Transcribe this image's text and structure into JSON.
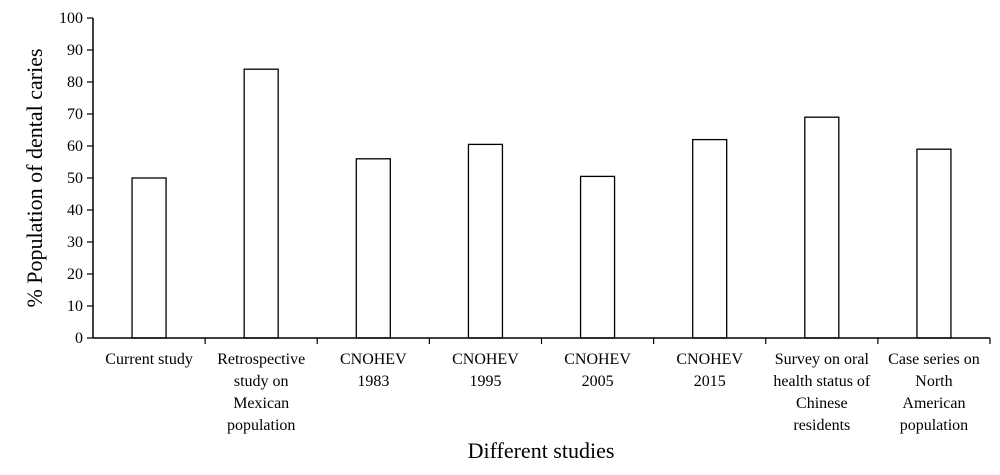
{
  "chart_data": {
    "type": "bar",
    "title": "",
    "xlabel": "Different studies",
    "ylabel": "% Population of dental caries",
    "ylim": [
      0,
      100
    ],
    "yticks": [
      0,
      10,
      20,
      30,
      40,
      50,
      60,
      70,
      80,
      90,
      100
    ],
    "grid": false,
    "categories": [
      [
        "Current study"
      ],
      [
        "Retrospective",
        "study on",
        "Mexican",
        "population"
      ],
      [
        "CNOHEV",
        "1983"
      ],
      [
        "CNOHEV",
        "1995"
      ],
      [
        "CNOHEV",
        "2005"
      ],
      [
        "CNOHEV",
        "2015"
      ],
      [
        "Survey on oral",
        "health status of",
        "Chinese",
        "residents"
      ],
      [
        "Case series on",
        "North",
        "American",
        "population"
      ]
    ],
    "values": [
      50,
      84,
      56,
      60.5,
      50.5,
      62,
      69,
      59
    ],
    "colors": {
      "bar_fill": "#ffffff",
      "bar_stroke": "#000000"
    }
  }
}
